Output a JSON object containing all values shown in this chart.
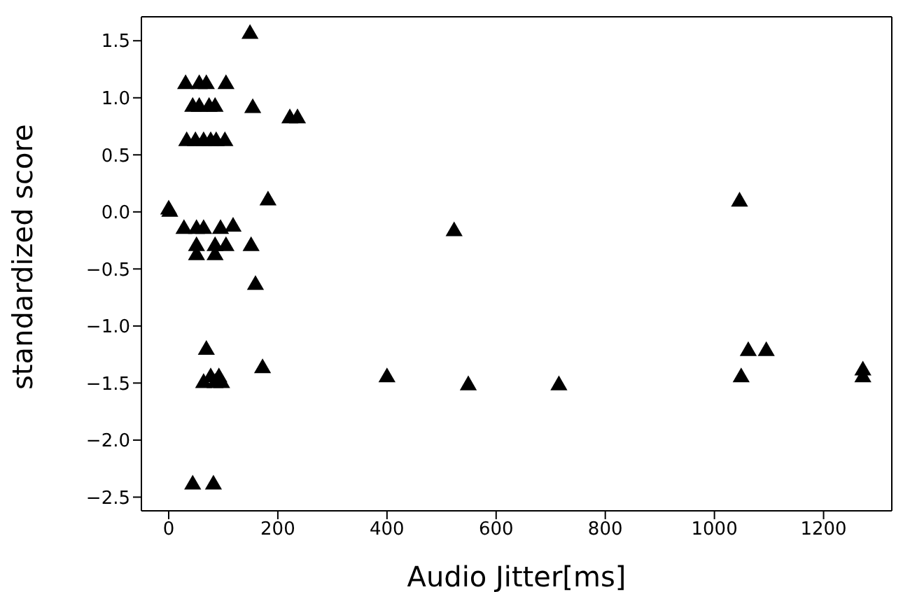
{
  "chart_data": {
    "type": "scatter",
    "xlabel": "Audio Jitter[ms]",
    "ylabel": "standardized score",
    "marker": "triangle",
    "grid": false,
    "legend": false,
    "xlim": [
      -50,
      1325
    ],
    "xticks": [
      0,
      200,
      400,
      600,
      800,
      1000,
      1200
    ],
    "ylim": [
      -2.62,
      1.71
    ],
    "yticks": [
      {
        "value": -2.5,
        "label": "−2.5"
      },
      {
        "value": -2,
        "label": "−2.0"
      },
      {
        "value": -1.5,
        "label": "−1.5"
      },
      {
        "value": -1,
        "label": "−1.0"
      },
      {
        "value": -0.5,
        "label": "−0.5"
      },
      {
        "value": 0,
        "label": "0.0"
      },
      {
        "value": 0.5,
        "label": "0.5"
      },
      {
        "value": 1,
        "label": "1.0"
      },
      {
        "value": 1.5,
        "label": "1.5"
      }
    ],
    "series": [
      {
        "color": "#000000",
        "x": [
          0,
          2,
          31,
          56,
          69,
          105,
          44,
          56,
          74,
          85,
          154,
          222,
          236,
          149,
          33,
          49,
          64,
          77,
          87,
          103,
          182,
          28,
          51,
          64,
          95,
          118,
          51,
          85,
          105,
          151,
          51,
          85,
          159,
          69,
          172,
          64,
          77,
          92,
          85,
          97,
          44,
          82,
          400,
          549,
          715,
          523,
          1046,
          1062,
          1095,
          1049,
          1272,
          1272
        ],
        "values": [
          0.02,
          0,
          1.12,
          1.12,
          1.12,
          1.12,
          0.92,
          0.92,
          0.92,
          0.92,
          0.91,
          0.82,
          0.82,
          1.56,
          0.62,
          0.62,
          0.62,
          0.62,
          0.62,
          0.62,
          0.1,
          -0.15,
          -0.15,
          -0.15,
          -0.15,
          -0.13,
          -0.3,
          -0.3,
          -0.3,
          -0.3,
          -0.38,
          -0.38,
          -0.64,
          -1.21,
          -1.37,
          -1.5,
          -1.45,
          -1.45,
          -1.5,
          -1.5,
          -2.39,
          -2.39,
          -1.45,
          -1.52,
          -1.52,
          -0.17,
          0.09,
          -1.22,
          -1.22,
          -1.45,
          -1.39,
          -1.45
        ]
      }
    ]
  }
}
